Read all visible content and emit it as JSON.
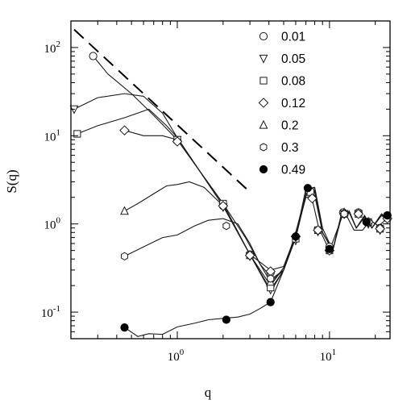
{
  "chart_data": {
    "type": "line",
    "title": "",
    "xlabel": "q",
    "ylabel": "S(q)",
    "xscale": "log",
    "yscale": "log",
    "xlim": [
      0.2,
      25
    ],
    "ylim": [
      0.05,
      200
    ],
    "x_ticks": [
      {
        "value": 1,
        "base": "10",
        "exp": "0"
      },
      {
        "value": 10,
        "base": "10",
        "exp": "1"
      }
    ],
    "y_ticks": [
      {
        "value": 0.1,
        "base": "10",
        "exp": "-1"
      },
      {
        "value": 1,
        "base": "10",
        "exp": "0"
      },
      {
        "value": 10,
        "base": "10",
        "exp": "1"
      },
      {
        "value": 100,
        "base": "10",
        "exp": "2"
      }
    ],
    "legend_position": "top-right",
    "reference_line": {
      "style": "dashed",
      "x": [
        0.21,
        3.0
      ],
      "y": [
        160,
        2.3
      ]
    },
    "series": [
      {
        "name": "0.01",
        "marker": "circle",
        "x": [
          0.28,
          0.35,
          0.5,
          0.7,
          1.0,
          1.4,
          2.0,
          2.8,
          3.5,
          4.2,
          5.0,
          6.0,
          7.0,
          7.6,
          8.5,
          10.0,
          11.5,
          12.5,
          14.5,
          16.5,
          18.5,
          21.0,
          24.0
        ],
        "y": [
          80,
          50,
          30,
          17,
          9,
          4.0,
          1.7,
          0.7,
          0.35,
          0.24,
          0.3,
          0.8,
          2.2,
          2.1,
          0.9,
          0.5,
          0.95,
          1.4,
          0.85,
          0.85,
          1.1,
          0.95,
          1.15
        ],
        "marker_x": [
          0.28,
          1.0,
          2.0,
          3.0,
          4.1,
          6.0,
          7.3,
          8.4,
          10.0,
          12.3,
          15.5,
          18.0,
          21.5,
          24.0
        ],
        "marker_y": [
          80,
          8.8,
          1.6,
          0.45,
          0.28,
          0.72,
          2.4,
          0.85,
          0.55,
          1.35,
          1.35,
          1.05,
          0.9,
          1.25
        ]
      },
      {
        "name": "0.05",
        "marker": "triangle-down",
        "x": [
          0.21,
          0.3,
          0.45,
          0.6,
          0.8,
          1.0,
          1.4,
          2.0,
          3.0,
          4.1,
          5.0,
          6.0,
          7.0,
          8.0,
          9.0,
          10.5,
          12.0,
          13.5,
          15.0,
          17.0,
          19.0,
          22.0,
          24.0
        ],
        "y": [
          20,
          27,
          30,
          28,
          18,
          9.5,
          4.0,
          1.6,
          0.45,
          0.17,
          0.3,
          0.7,
          2.1,
          2.3,
          0.8,
          0.5,
          1.3,
          1.35,
          0.9,
          1.25,
          0.9,
          1.3,
          1.1
        ],
        "marker_x": [
          0.21,
          1.0,
          2.0,
          3.0,
          4.1,
          6.0,
          7.5,
          8.4,
          10.0,
          12.5,
          15.5,
          18.0,
          21.5,
          24.0
        ],
        "marker_y": [
          20,
          9,
          1.55,
          0.43,
          0.18,
          0.65,
          2.3,
          0.82,
          0.5,
          1.3,
          1.3,
          1.0,
          0.85,
          1.15
        ]
      },
      {
        "name": "0.08",
        "marker": "square",
        "x": [
          0.22,
          0.3,
          0.45,
          0.65,
          0.85,
          1.0,
          1.4,
          2.0,
          3.0,
          4.1,
          5.0,
          6.0,
          7.0,
          8.0,
          9.0,
          10.5,
          12.0,
          13.5,
          15.0,
          17.0,
          19.0,
          22.0,
          24.0
        ],
        "y": [
          10.5,
          13,
          16,
          20,
          13,
          9.5,
          4.0,
          1.7,
          0.45,
          0.18,
          0.3,
          0.7,
          2.1,
          2.4,
          0.8,
          0.5,
          1.3,
          1.35,
          0.9,
          1.2,
          0.9,
          1.3,
          1.15
        ],
        "marker_x": [
          0.22,
          1.0,
          2.0,
          3.0,
          4.1,
          6.0,
          7.5,
          8.4,
          10.0,
          12.5,
          15.5,
          18.0,
          21.5,
          24.0
        ],
        "marker_y": [
          10.5,
          9,
          1.7,
          0.44,
          0.19,
          0.68,
          2.3,
          0.85,
          0.5,
          1.3,
          1.3,
          1.05,
          0.88,
          1.2
        ]
      },
      {
        "name": "0.12",
        "marker": "diamond",
        "x": [
          0.45,
          0.6,
          0.8,
          1.0,
          1.4,
          2.0,
          3.0,
          4.1,
          5.0,
          6.0,
          7.0,
          8.0,
          9.0,
          10.5,
          12.0,
          13.5,
          15.0,
          17.0,
          19.0,
          22.0,
          24.0
        ],
        "y": [
          11.5,
          10,
          10,
          9,
          4.0,
          1.6,
          0.45,
          0.3,
          0.33,
          0.75,
          2.0,
          2.1,
          0.8,
          0.5,
          1.3,
          1.35,
          0.9,
          1.2,
          0.9,
          1.25,
          1.1
        ],
        "marker_x": [
          0.45,
          1.0,
          2.0,
          3.0,
          4.1,
          6.0,
          7.7,
          8.4,
          10.0,
          12.5,
          15.5,
          18.0,
          21.5,
          24.0
        ],
        "marker_y": [
          11.5,
          8.6,
          1.6,
          0.44,
          0.29,
          0.72,
          1.95,
          0.85,
          0.5,
          1.3,
          1.3,
          1.05,
          0.88,
          1.15
        ]
      },
      {
        "name": "0.2",
        "marker": "triangle-up",
        "x": [
          0.45,
          0.55,
          0.7,
          0.85,
          1.0,
          1.2,
          1.5,
          2.0,
          3.0,
          4.1,
          5.0,
          6.0,
          7.0,
          8.0,
          9.0,
          10.5,
          12.0,
          13.5,
          15.0,
          17.0,
          19.0,
          22.0,
          24.0
        ],
        "y": [
          1.4,
          1.7,
          2.2,
          2.7,
          2.8,
          3.0,
          2.6,
          1.6,
          0.45,
          0.2,
          0.32,
          0.7,
          2.1,
          2.3,
          0.8,
          0.5,
          1.3,
          1.35,
          0.9,
          1.2,
          0.9,
          1.25,
          1.1
        ],
        "marker_x": [
          0.45,
          4.1,
          12.5
        ],
        "marker_y": [
          1.4,
          0.22,
          1.35
        ]
      },
      {
        "name": "0.3",
        "marker": "hexagon",
        "x": [
          0.45,
          0.6,
          0.8,
          1.0,
          1.3,
          1.6,
          2.0,
          2.5,
          3.0,
          3.5,
          4.1,
          5.0,
          6.0,
          7.0,
          8.0,
          9.0,
          10.5,
          12.0,
          13.5,
          15.0,
          17.0,
          19.0,
          22.0,
          24.0
        ],
        "y": [
          0.43,
          0.55,
          0.7,
          0.75,
          0.95,
          1.1,
          1.15,
          1.0,
          0.6,
          0.35,
          0.22,
          0.3,
          0.7,
          2.2,
          2.4,
          0.8,
          0.5,
          1.3,
          1.35,
          0.9,
          1.2,
          0.9,
          1.25,
          1.1
        ],
        "marker_x": [
          0.45,
          2.1,
          4.1,
          12.5
        ],
        "marker_y": [
          0.43,
          0.95,
          0.24,
          1.3
        ]
      },
      {
        "name": "0.49",
        "marker": "filled-circle",
        "x": [
          0.45,
          0.55,
          0.65,
          0.8,
          1.0,
          1.3,
          1.6,
          2.0,
          2.5,
          3.0,
          3.5,
          4.1,
          5.0,
          6.0,
          7.0,
          8.0,
          9.0,
          10.5,
          12.0,
          13.5,
          15.0,
          17.0,
          19.0,
          22.0,
          24.0
        ],
        "y": [
          0.067,
          0.053,
          0.057,
          0.056,
          0.068,
          0.075,
          0.082,
          0.085,
          0.088,
          0.095,
          0.11,
          0.13,
          0.3,
          0.72,
          2.5,
          2.6,
          0.9,
          0.5,
          1.2,
          1.4,
          0.9,
          1.2,
          0.9,
          1.25,
          1.25
        ],
        "marker_x": [
          0.45,
          2.1,
          4.1,
          6.0,
          7.2,
          10.0,
          17.5,
          24.0
        ],
        "marker_y": [
          0.067,
          0.082,
          0.13,
          0.72,
          2.55,
          0.52,
          1.05,
          1.25
        ]
      }
    ]
  }
}
